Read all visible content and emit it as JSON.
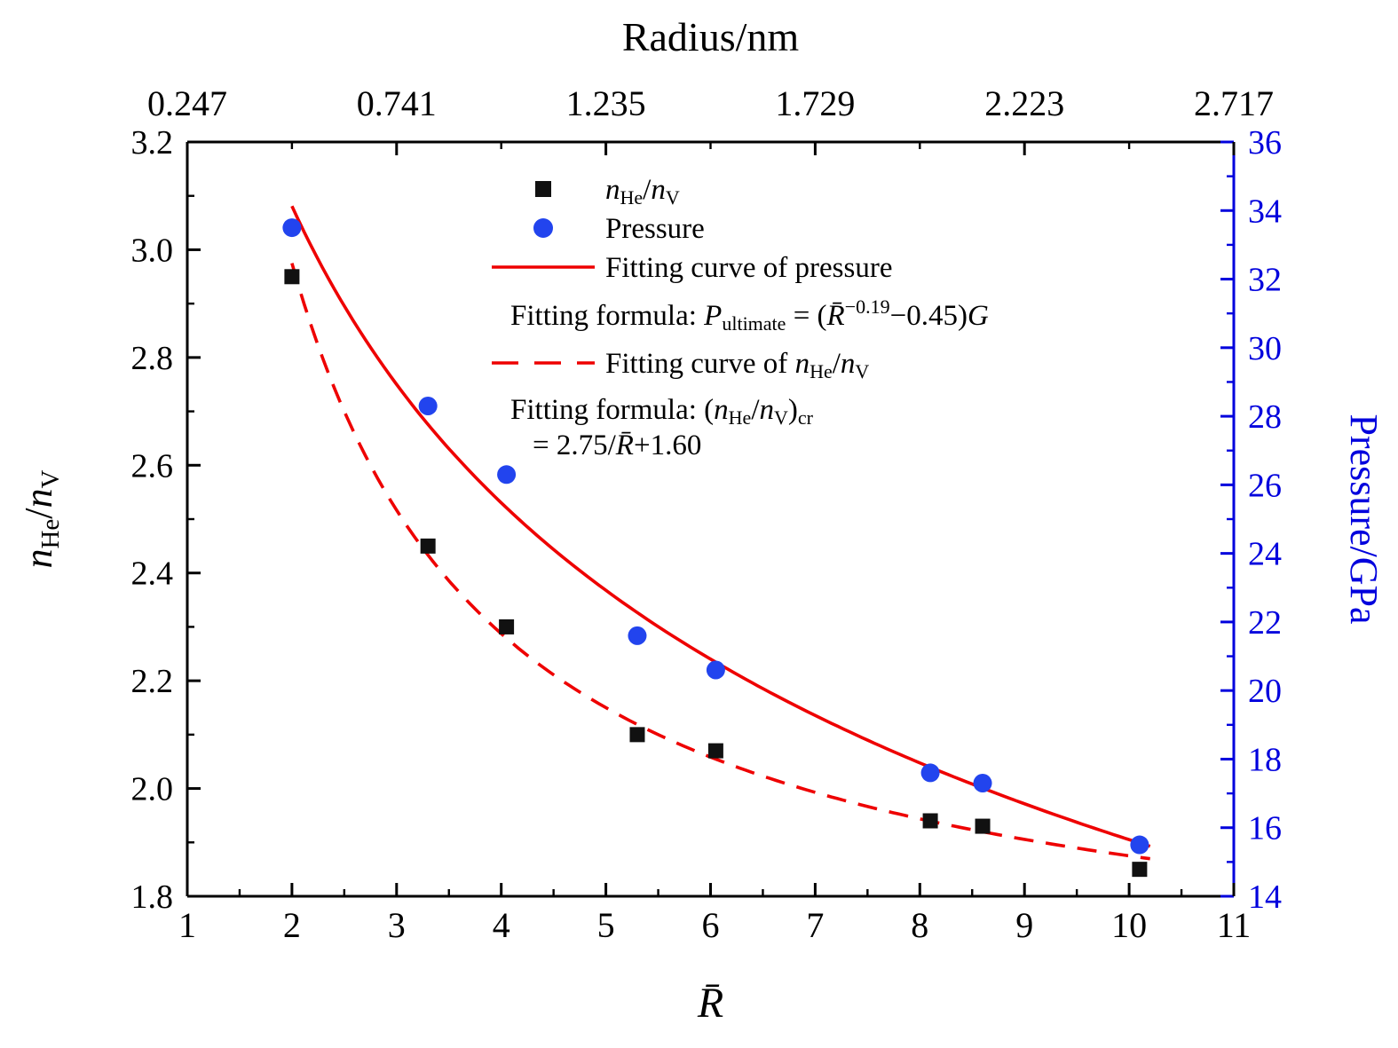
{
  "figure": {
    "background": "#ffffff"
  },
  "chart_data": {
    "type": "scatter",
    "title": "",
    "axes": {
      "top": {
        "label": "Radius/nm",
        "ticks": [
          {
            "value": 1,
            "label": "0.247"
          },
          {
            "value": 3,
            "label": "0.741"
          },
          {
            "value": 5,
            "label": "1.235"
          },
          {
            "value": 7,
            "label": "1.729"
          },
          {
            "value": 9,
            "label": "2.223"
          },
          {
            "value": 11,
            "label": "2.717"
          }
        ],
        "minor_tick_values": [
          2,
          4,
          6,
          8,
          10
        ],
        "color": "#000000"
      },
      "bottom": {
        "label": "*R̄*",
        "range": [
          1,
          11
        ],
        "major_step": 1,
        "minor_step": 0.5,
        "tick_labels": [
          "1",
          "2",
          "3",
          "4",
          "5",
          "6",
          "7",
          "8",
          "9",
          "10",
          "11"
        ],
        "color": "#000000"
      },
      "left": {
        "label": "*n*_{He}/*n*_{V}",
        "range": [
          1.8,
          3.2
        ],
        "major_step": 0.2,
        "minor_step": 0.1,
        "tick_labels": [
          "1.8",
          "2.0",
          "2.2",
          "2.4",
          "2.6",
          "2.8",
          "3.0",
          "3.2"
        ],
        "color": "#000000"
      },
      "right": {
        "label": "Pressure/GPa",
        "range": [
          14,
          36
        ],
        "major_step": 2,
        "minor_step": 1,
        "tick_labels": [
          "14",
          "16",
          "18",
          "20",
          "22",
          "24",
          "26",
          "28",
          "30",
          "32",
          "34",
          "36"
        ],
        "color": "#0000dd"
      }
    },
    "series": [
      {
        "name": "n_He/n_V",
        "axis": "left",
        "marker": "square",
        "color": "#111111",
        "points": [
          [
            2.0,
            2.95
          ],
          [
            3.3,
            2.45
          ],
          [
            4.05,
            2.3
          ],
          [
            5.3,
            2.1
          ],
          [
            6.05,
            2.07
          ],
          [
            8.1,
            1.94
          ],
          [
            8.6,
            1.93
          ],
          [
            10.1,
            1.85
          ]
        ]
      },
      {
        "name": "Pressure",
        "axis": "right",
        "marker": "circle",
        "color": "#2244ee",
        "points": [
          [
            2.0,
            33.5
          ],
          [
            3.3,
            28.3
          ],
          [
            4.05,
            26.3
          ],
          [
            5.3,
            21.6
          ],
          [
            6.05,
            20.6
          ],
          [
            8.1,
            17.6
          ],
          [
            8.6,
            17.3
          ],
          [
            10.1,
            15.5
          ]
        ]
      }
    ],
    "fits": [
      {
        "name": "Fitting curve of pressure",
        "axis": "right",
        "style": "solid",
        "color": "#ee0000",
        "kind": "power",
        "formula_text": "P_ultimate = (R̄^−0.19 − 0.45)G",
        "params": {
          "exponent": -0.19,
          "offset": 0.45,
          "G": 80
        },
        "x_range": [
          2.0,
          10.2
        ]
      },
      {
        "name": "Fitting curve of n_He/n_V",
        "axis": "left",
        "style": "dashed",
        "color": "#ee0000",
        "kind": "inverse",
        "formula_text": "(n_He/n_V)_cr = 2.75/R̄ + 1.60",
        "params": {
          "a": 2.75,
          "b": 1.6
        },
        "x_range": [
          2.0,
          10.2
        ]
      }
    ],
    "legend": {
      "position": "top-center-inside",
      "items": [
        {
          "kind": "marker",
          "marker": "square",
          "color": "#111111",
          "text": "*n*_{He}/*n*_{V}"
        },
        {
          "kind": "marker",
          "marker": "circle",
          "color": "#2244ee",
          "text": "Pressure"
        },
        {
          "kind": "line",
          "style": "solid",
          "color": "#ee0000",
          "text": "Fitting curve of pressure"
        },
        {
          "kind": "text",
          "indent": false,
          "text": "Fitting formula: *P*_{ultimate} = (*R̄*^{−0.19}−0.45)*G*"
        },
        {
          "kind": "line",
          "style": "dashed",
          "color": "#ee0000",
          "text": "Fitting curve of *n*_{He}/*n*_{V}"
        },
        {
          "kind": "text",
          "indent": false,
          "text": "Fitting formula: (*n*_{He}/*n*_{V})_{cr}"
        },
        {
          "kind": "text",
          "indent": true,
          "text": "= 2.75/*R̄*+1.60"
        }
      ]
    },
    "grid": false
  }
}
